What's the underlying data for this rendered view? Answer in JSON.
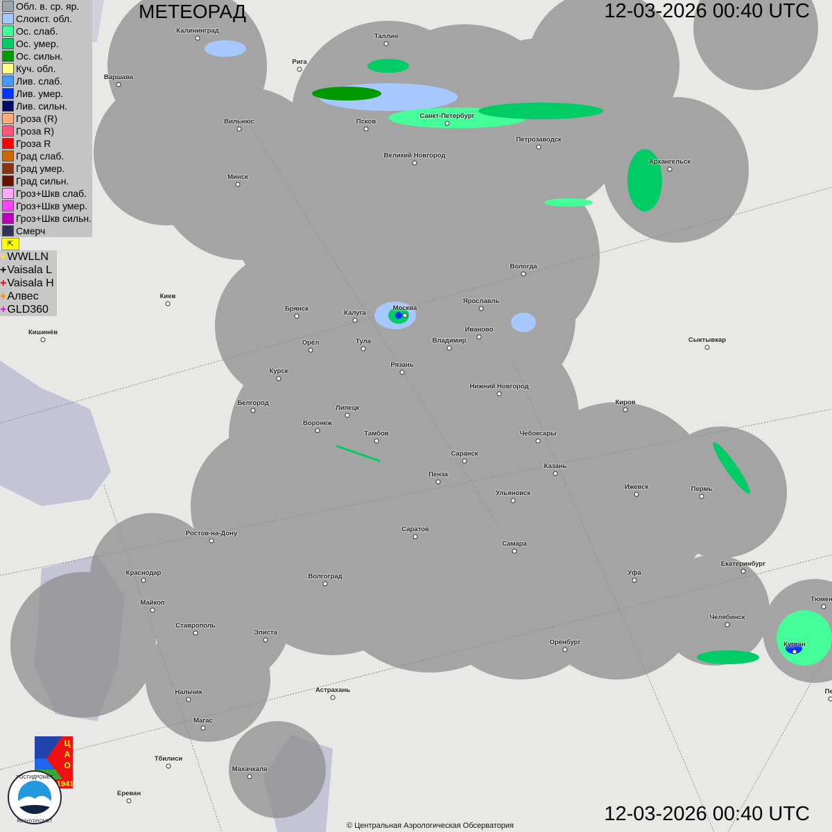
{
  "header": {
    "title": "МЕТЕОРАД",
    "datetime_top": "12-03-2026  00:40 UTC",
    "datetime_bottom": "12-03-2026  00:40 UTC"
  },
  "legend": [
    {
      "label": "Обл. в. ср. яр.",
      "color": "#9aa4aa"
    },
    {
      "label": "Слоист. обл.",
      "color": "#a6c8ff"
    },
    {
      "label": "Ос. слаб.",
      "color": "#44ff99"
    },
    {
      "label": "Ос. умер.",
      "color": "#00cc66"
    },
    {
      "label": "Ос. сильн.",
      "color": "#009900"
    },
    {
      "label": "Куч. обл.",
      "color": "#ffff88"
    },
    {
      "label": "Лив. слаб.",
      "color": "#4499ff"
    },
    {
      "label": "Лив. умер.",
      "color": "#0033ff"
    },
    {
      "label": "Лив. сильн.",
      "color": "#000d66"
    },
    {
      "label": "Гроза (R)",
      "color": "#ffaa77"
    },
    {
      "label": "Гроза R)",
      "color": "#ff5577"
    },
    {
      "label": "Гроза R",
      "color": "#ff0000"
    },
    {
      "label": "Град слаб.",
      "color": "#cc6600"
    },
    {
      "label": "Град умер.",
      "color": "#883311"
    },
    {
      "label": "Град сильн.",
      "color": "#661100"
    },
    {
      "label": "Гроз+Шкв слаб.",
      "color": "#ffaaff"
    },
    {
      "label": "Гроз+Шкв умер.",
      "color": "#ff44ff"
    },
    {
      "label": "Гроз+Шкв сильн.",
      "color": "#bb00bb"
    },
    {
      "label": "Смерч",
      "color": "#333355"
    }
  ],
  "lightning": [
    {
      "label": "WWLLN",
      "color": "#ffee00"
    },
    {
      "label": "Vaisala L",
      "color": "#000000"
    },
    {
      "label": "Vaisala H",
      "color": "#ff0000"
    },
    {
      "label": "Алвес",
      "color": "#ff8800"
    },
    {
      "label": "GLD360",
      "color": "#ff00ff"
    }
  ],
  "cities": [
    "Калининград",
    "Таллин",
    "Рига",
    "Варшава",
    "Вильнюс",
    "Псков",
    "Санкт-Петербург",
    "Петрозаводск",
    "Великий Новгород",
    "Архангельск",
    "Минск",
    "Вологда",
    "Киев",
    "Брянск",
    "Калуга",
    "Москва",
    "Ярославль",
    "Иваново",
    "Кишинёв",
    "Орёл",
    "Тула",
    "Владимир",
    "Сыктывкар",
    "Рязань",
    "Курск",
    "Нижний Новгород",
    "Белгород",
    "Липецк",
    "Киров",
    "Воронеж",
    "Тамбов",
    "Чебоксары",
    "Саранск",
    "Казань",
    "Пенза",
    "Ижевск",
    "Пермь",
    "Ульяновск",
    "Ростов-на-Дону",
    "Саратов",
    "Самара",
    "Екатеринбург",
    "Краснодар",
    "Уфа",
    "Волгоград",
    "Майкоп",
    "Тюмень",
    "Челябинск",
    "Ставрополь",
    "Элиста",
    "Оренбург",
    "Курган",
    "Астрахань",
    "Пет",
    "Нальчик",
    "Магас",
    "Тбилиси",
    "Махачкала",
    "Ереван"
  ],
  "logos": {
    "cao": "ЦАО 1941",
    "roshydromet": "РОСГИДРОМЕТ ROSHYDROMET"
  },
  "footer": {
    "copyright": "© Центральная Аэрологическая Обсерватория"
  }
}
